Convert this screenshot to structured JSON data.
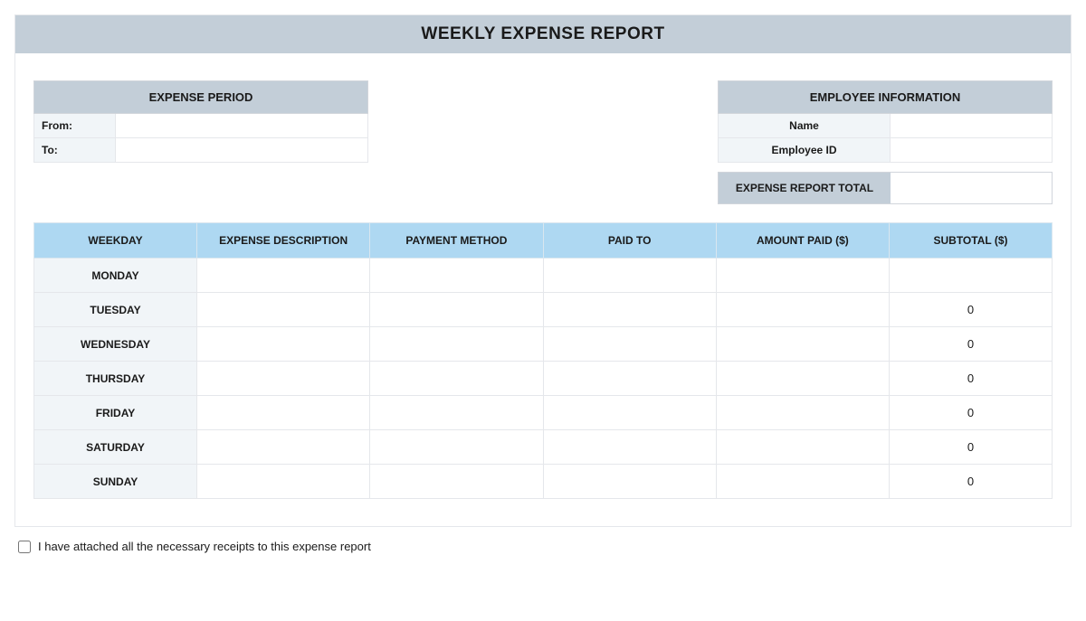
{
  "title": "WEEKLY EXPENSE REPORT",
  "expense_period": {
    "header": "EXPENSE PERIOD",
    "from_label": "From:",
    "to_label": "To:",
    "from_value": "",
    "to_value": ""
  },
  "employee_info": {
    "header": "EMPLOYEE INFORMATION",
    "name_label": "Name",
    "id_label": "Employee ID",
    "name_value": "",
    "id_value": ""
  },
  "total": {
    "label": "EXPENSE REPORT TOTAL",
    "value": ""
  },
  "table": {
    "columns": [
      "WEEKDAY",
      "EXPENSE DESCRIPTION",
      "PAYMENT METHOD",
      "PAID TO",
      "AMOUNT PAID ($)",
      "SUBTOTAL ($)"
    ],
    "rows": [
      {
        "day": "MONDAY",
        "description": "",
        "method": "",
        "paid_to": "",
        "amount": "",
        "subtotal": ""
      },
      {
        "day": "TUESDAY",
        "description": "",
        "method": "",
        "paid_to": "",
        "amount": "",
        "subtotal": "0"
      },
      {
        "day": "WEDNESDAY",
        "description": "",
        "method": "",
        "paid_to": "",
        "amount": "",
        "subtotal": "0"
      },
      {
        "day": "THURSDAY",
        "description": "",
        "method": "",
        "paid_to": "",
        "amount": "",
        "subtotal": "0"
      },
      {
        "day": "FRIDAY",
        "description": "",
        "method": "",
        "paid_to": "",
        "amount": "",
        "subtotal": "0"
      },
      {
        "day": "SATURDAY",
        "description": "",
        "method": "",
        "paid_to": "",
        "amount": "",
        "subtotal": "0"
      },
      {
        "day": "SUNDAY",
        "description": "",
        "method": "",
        "paid_to": "",
        "amount": "",
        "subtotal": "0"
      }
    ]
  },
  "footer": {
    "checkbox_label": "I have attached all the necessary receipts to this expense report",
    "checked": false
  },
  "colors": {
    "header_bg": "#c3ced8",
    "table_header_bg": "#aed8f2",
    "row_label_bg": "#f1f5f8",
    "border": "#e5e7eb"
  }
}
